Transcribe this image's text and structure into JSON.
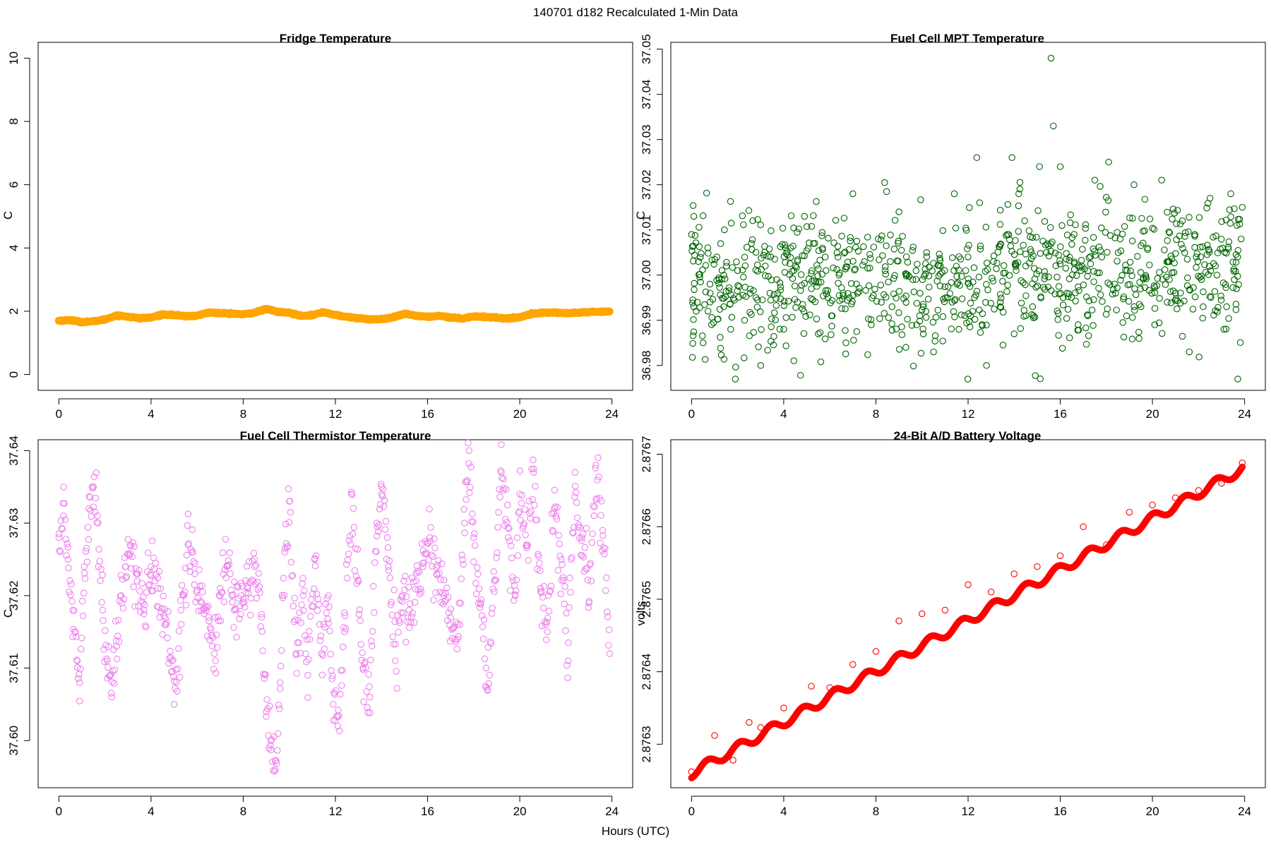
{
  "figure": {
    "title": "140701   d182   Recalculated 1-Min Data",
    "common_xlabel": "Hours (UTC)"
  },
  "chart_data": [
    {
      "id": "fridge",
      "type": "scatter",
      "title": "Fridge Temperature",
      "xlabel": "",
      "ylabel": "C",
      "xlim": [
        -0.9,
        24.9
      ],
      "ylim": [
        -0.5,
        10.5
      ],
      "xticks": [
        0,
        4,
        8,
        12,
        16,
        20,
        24
      ],
      "yticks": [
        0,
        2,
        4,
        6,
        8,
        10
      ],
      "ytick_labels": [
        "0",
        "2",
        "4",
        "6",
        "8",
        "10"
      ],
      "color": "#ffa500",
      "marker": "filled",
      "x": [
        0.0,
        0.5,
        1.0,
        1.5,
        2.0,
        2.5,
        3.0,
        3.5,
        4.0,
        4.5,
        5.0,
        5.5,
        6.0,
        6.5,
        7.0,
        7.5,
        8.0,
        8.5,
        9.0,
        9.5,
        10.0,
        10.5,
        11.0,
        11.5,
        12.0,
        12.5,
        13.0,
        13.5,
        14.0,
        14.5,
        15.0,
        15.5,
        16.0,
        16.5,
        17.0,
        17.5,
        18.0,
        18.5,
        19.0,
        19.5,
        20.0,
        20.5,
        21.0,
        21.5,
        22.0,
        22.5,
        23.0,
        23.5,
        23.9
      ],
      "values": [
        1.7,
        1.72,
        1.66,
        1.68,
        1.74,
        1.87,
        1.83,
        1.78,
        1.8,
        1.9,
        1.88,
        1.84,
        1.86,
        1.96,
        1.94,
        1.93,
        1.9,
        1.96,
        2.07,
        1.98,
        1.95,
        1.86,
        1.88,
        1.97,
        1.88,
        1.82,
        1.78,
        1.74,
        1.75,
        1.8,
        1.92,
        1.86,
        1.82,
        1.86,
        1.8,
        1.77,
        1.84,
        1.82,
        1.8,
        1.77,
        1.81,
        1.92,
        1.95,
        1.96,
        1.94,
        1.95,
        1.97,
        1.98,
        1.99
      ]
    },
    {
      "id": "mpt",
      "type": "scatter",
      "title": "Fuel Cell MPT Temperature",
      "xlabel": "",
      "ylabel": "C",
      "xlim": [
        -0.9,
        24.9
      ],
      "ylim": [
        36.9745,
        37.0515
      ],
      "xticks": [
        0,
        4,
        8,
        12,
        16,
        20,
        24
      ],
      "yticks": [
        36.98,
        36.99,
        37.0,
        37.01,
        37.02,
        37.03,
        37.04,
        37.05
      ],
      "ytick_labels": [
        "36.98",
        "36.99",
        "37.00",
        "37.01",
        "37.02",
        "37.03",
        "37.04",
        "37.05"
      ],
      "color": "#006400",
      "marker": "open",
      "x": [
        0.0,
        0.1,
        0.2,
        0.3,
        0.5,
        0.8,
        1.1,
        1.4,
        1.7,
        1.9,
        2.0,
        2.3,
        2.6,
        2.8,
        3.0,
        3.2,
        3.4,
        3.7,
        4.0,
        4.3,
        4.6,
        4.9,
        5.2,
        5.5,
        5.8,
        6.1,
        6.4,
        6.7,
        7.0,
        7.2,
        7.5,
        7.8,
        8.1,
        8.4,
        8.7,
        9.0,
        9.3,
        9.6,
        9.9,
        10.2,
        10.5,
        10.8,
        11.1,
        11.4,
        11.6,
        11.9,
        12.2,
        12.5,
        12.8,
        13.1,
        13.4,
        13.7,
        14.0,
        14.2,
        14.5,
        14.8,
        15.1,
        15.4,
        15.6,
        15.7,
        16.0,
        16.3,
        16.6,
        16.9,
        17.2,
        17.5,
        17.8,
        18.1,
        18.4,
        18.6,
        18.9,
        19.2,
        19.5,
        19.8,
        20.1,
        20.4,
        20.7,
        21.0,
        21.3,
        21.6,
        21.9,
        22.2,
        22.5,
        22.8,
        23.1,
        23.4,
        23.7,
        23.9
      ],
      "values": [
        37.009,
        37.013,
        36.992,
        37.003,
        36.985,
        36.998,
        37.004,
        36.993,
        36.988,
        36.977,
        37.001,
        36.99,
        37.007,
        36.995,
        36.98,
        37.002,
        36.996,
        36.999,
        36.988,
        37.006,
        36.994,
        37.013,
        36.997,
        36.987,
        37.004,
        36.991,
        37.0,
        36.985,
        37.018,
        36.996,
        37.003,
        36.989,
        37.008,
        37.001,
        36.993,
        37.014,
        36.984,
        36.999,
        36.991,
        37.005,
        36.983,
        37.002,
        36.995,
        37.018,
        36.988,
        37.001,
        36.992,
        37.016,
        36.98,
        37.003,
        36.994,
        37.009,
        36.987,
        37.018,
        37.002,
        36.993,
        37.024,
        37.005,
        37.048,
        37.033,
        37.024,
        36.996,
        37.009,
        37.001,
        36.991,
        37.021,
        37.004,
        37.025,
        36.996,
        37.008,
        37.001,
        37.02,
        36.993,
        37.006,
        36.989,
        37.021,
        37.003,
        36.996,
        37.012,
        36.983,
        37.004,
        36.993,
        37.017,
        37.0,
        36.988,
        37.018,
        37.004,
        37.015
      ]
    },
    {
      "id": "thermistor",
      "type": "scatter",
      "title": "Fuel Cell Thermistor Temperature",
      "xlabel": "",
      "ylabel": "C",
      "xlim": [
        -0.9,
        24.9
      ],
      "ylim": [
        37.5935,
        37.6415
      ],
      "xticks": [
        0,
        4,
        8,
        12,
        16,
        20,
        24
      ],
      "yticks": [
        37.6,
        37.61,
        37.62,
        37.63,
        37.64
      ],
      "ytick_labels": [
        "37.60",
        "37.61",
        "37.62",
        "37.63",
        "37.64"
      ],
      "color": "#ee82ee",
      "marker": "open",
      "x": [
        0.0,
        0.2,
        0.4,
        0.6,
        0.8,
        0.9,
        1.1,
        1.3,
        1.5,
        1.7,
        1.9,
        2.1,
        2.3,
        2.5,
        2.7,
        2.9,
        3.1,
        3.4,
        3.7,
        4.0,
        4.3,
        4.6,
        4.9,
        5.0,
        5.3,
        5.6,
        5.9,
        6.2,
        6.5,
        6.8,
        7.0,
        7.3,
        7.6,
        7.9,
        8.2,
        8.5,
        8.8,
        9.0,
        9.2,
        9.4,
        9.6,
        9.8,
        10.0,
        10.3,
        10.6,
        10.8,
        11.1,
        11.4,
        11.7,
        11.9,
        12.1,
        12.4,
        12.7,
        13.0,
        13.2,
        13.5,
        13.8,
        14.0,
        14.3,
        14.6,
        14.9,
        15.2,
        15.5,
        15.8,
        16.1,
        16.4,
        16.7,
        17.0,
        17.3,
        17.6,
        17.8,
        18.0,
        18.3,
        18.6,
        18.9,
        19.2,
        19.5,
        19.8,
        20.0,
        20.3,
        20.6,
        20.9,
        21.2,
        21.5,
        21.8,
        22.1,
        22.4,
        22.7,
        23.0,
        23.3,
        23.6,
        23.9
      ],
      "values": [
        37.628,
        37.631,
        37.625,
        37.618,
        37.611,
        37.608,
        37.624,
        37.632,
        37.635,
        37.63,
        37.618,
        37.611,
        37.606,
        37.613,
        37.62,
        37.624,
        37.627,
        37.622,
        37.618,
        37.624,
        37.621,
        37.616,
        37.611,
        37.605,
        37.618,
        37.627,
        37.623,
        37.619,
        37.617,
        37.611,
        37.621,
        37.624,
        37.618,
        37.62,
        37.621,
        37.624,
        37.617,
        37.604,
        37.6,
        37.596,
        37.608,
        37.626,
        37.633,
        37.612,
        37.62,
        37.609,
        37.625,
        37.612,
        37.62,
        37.605,
        37.602,
        37.615,
        37.634,
        37.622,
        37.61,
        37.606,
        37.63,
        37.635,
        37.624,
        37.611,
        37.62,
        37.618,
        37.622,
        37.624,
        37.628,
        37.623,
        37.62,
        37.617,
        37.614,
        37.63,
        37.64,
        37.628,
        37.619,
        37.607,
        37.622,
        37.637,
        37.628,
        37.62,
        37.634,
        37.627,
        37.637,
        37.621,
        37.615,
        37.632,
        37.625,
        37.611,
        37.637,
        37.628,
        37.619,
        37.638,
        37.629,
        37.612
      ]
    },
    {
      "id": "battery",
      "type": "scatter",
      "title": "24-Bit A/D Battery Voltage",
      "xlabel": "",
      "ylabel": "volts",
      "xlim": [
        -0.9,
        24.9
      ],
      "ylim": [
        2.87624,
        2.87672
      ],
      "xticks": [
        0,
        4,
        8,
        12,
        16,
        20,
        24
      ],
      "yticks": [
        2.8763,
        2.8764,
        2.8765,
        2.8766,
        2.8767
      ],
      "ytick_labels": [
        "2.8763",
        "2.8764",
        "2.8765",
        "2.8766",
        "2.8767"
      ],
      "color": "#ff0000",
      "marker": "open",
      "model": {
        "start": 2.87626,
        "end": 2.87668,
        "osc_amplitude": 6.5e-06,
        "osc_period_hours": 1.38
      },
      "x": [
        0.0,
        1.0,
        1.8,
        2.5,
        3.0,
        4.0,
        5.2,
        6.0,
        7.0,
        8.0,
        9.0,
        10.0,
        11.0,
        12.0,
        13.0,
        14.0,
        15.0,
        16.0,
        17.0,
        18.0,
        19.0,
        20.0,
        21.0,
        22.0,
        23.0,
        23.9
      ],
      "values": [
        2.876262,
        2.876312,
        2.876278,
        2.87633,
        2.876323,
        2.87635,
        2.87638,
        2.876378,
        2.87641,
        2.876428,
        2.87647,
        2.87648,
        2.876485,
        2.87652,
        2.87651,
        2.876535,
        2.876545,
        2.87656,
        2.8766,
        2.876575,
        2.87662,
        2.87663,
        2.87664,
        2.87665,
        2.87666,
        2.876688
      ]
    }
  ]
}
